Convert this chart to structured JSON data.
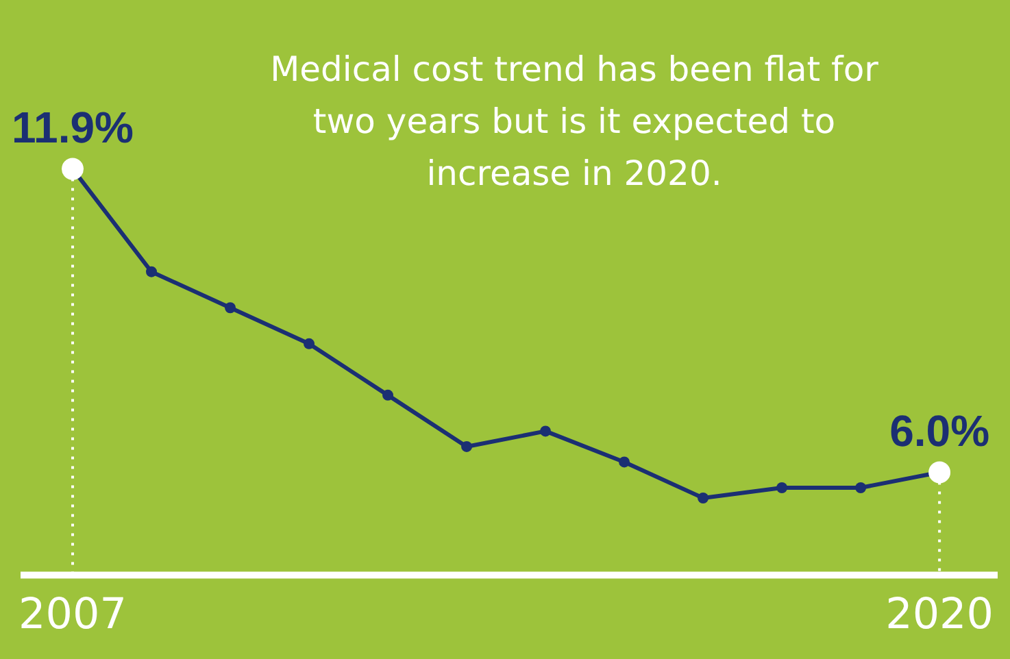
{
  "chart_data": {
    "type": "line",
    "title": "Medical cost trend has been flat for two years but is it expected to increase in 2020.",
    "categories": [
      "2007",
      null,
      null,
      null,
      null,
      null,
      null,
      null,
      null,
      null,
      null,
      "2020"
    ],
    "series": [
      {
        "color": "#1b2f73",
        "values": [
          11.9,
          9.9,
          9.2,
          8.5,
          7.5,
          6.5,
          6.8,
          6.2,
          5.5,
          5.7,
          5.7,
          6.0
        ],
        "value_labels": [
          "11.9%",
          null,
          null,
          null,
          null,
          null,
          null,
          null,
          null,
          null,
          null,
          "6.0%"
        ]
      }
    ],
    "tick_labels": "x",
    "grid": "x",
    "legend": false,
    "marker": "circle",
    "line_style": "solid"
  }
}
